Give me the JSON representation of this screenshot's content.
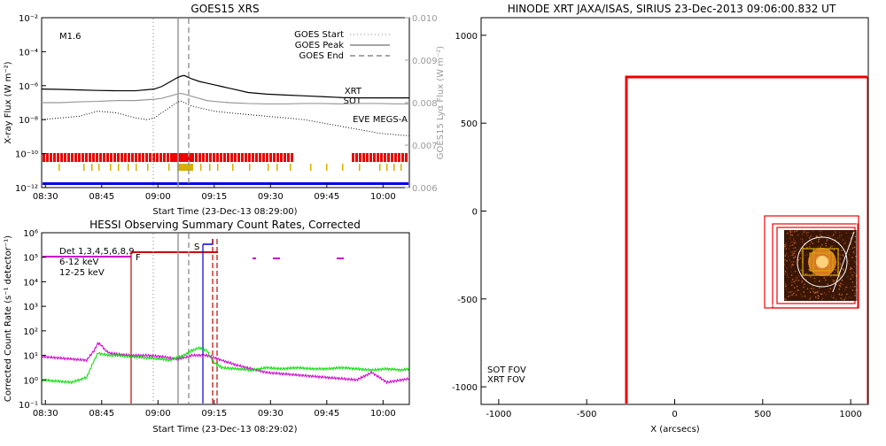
{
  "chart_data": [
    {
      "type": "line",
      "title": "GOES15 XRS",
      "xlabel": "Start Time (23-Dec-13 08:29:00)",
      "ylabel": "X-ray Flux (W m⁻²)",
      "ylabel2": "GOES15 Lyα Flux (W m⁻²)",
      "x_ticks": [
        "08:30",
        "08:45",
        "09:00",
        "09:15",
        "09:30",
        "09:45",
        "10:00"
      ],
      "y_ticks": [
        "10⁻²",
        "10⁻⁴",
        "10⁻⁶",
        "10⁻⁸",
        "10⁻¹⁰",
        "10⁻¹²"
      ],
      "y2_ticks": [
        "0.010",
        "0.009",
        "0.008",
        "0.007",
        "0.006"
      ],
      "flare_class": "M1.6",
      "legend": [
        {
          "label": "GOES Start",
          "style": "dotted"
        },
        {
          "label": "GOES Peak",
          "style": "solid"
        },
        {
          "label": "GOES End",
          "style": "dashed"
        }
      ],
      "instrument_labels": [
        {
          "label": "XRT",
          "color": "#cc0000"
        },
        {
          "label": "SOT",
          "color": "#d4b000"
        },
        {
          "label": "EVE MEGS-A",
          "color": "#0000cc"
        }
      ],
      "markers": {
        "start": "09:00",
        "peak": "09:06",
        "end": "09:09"
      },
      "series": [
        {
          "name": "",
          "color": "#000000",
          "style": "solid",
          "x": [
            0,
            5,
            10,
            15,
            20,
            25,
            30,
            32,
            34,
            36,
            37,
            38,
            39,
            40,
            42,
            44,
            46,
            48,
            50,
            52,
            55,
            60,
            65,
            70,
            75,
            80,
            85,
            90,
            95,
            98
          ],
          "log_y": [
            -6.2,
            -6.22,
            -6.25,
            -6.28,
            -6.3,
            -6.3,
            -6.2,
            -6.05,
            -5.8,
            -5.55,
            -5.45,
            -5.4,
            -5.5,
            -5.6,
            -5.75,
            -5.85,
            -5.95,
            -6.05,
            -6.15,
            -6.25,
            -6.4,
            -6.5,
            -6.55,
            -6.6,
            -6.65,
            -6.7,
            -6.72,
            -6.72,
            -6.72,
            -6.72
          ]
        },
        {
          "name": "",
          "color": "#000000",
          "style": "dotted",
          "x": [
            0,
            5,
            10,
            15,
            20,
            25,
            28,
            30,
            32,
            34,
            36,
            37,
            38,
            40,
            42,
            44,
            46,
            50,
            55,
            60,
            65,
            70,
            75,
            80,
            85,
            90,
            95,
            98
          ],
          "log_y": [
            -8.0,
            -7.9,
            -7.8,
            -7.5,
            -7.6,
            -7.9,
            -8.0,
            -7.9,
            -7.6,
            -7.3,
            -7.0,
            -6.9,
            -7.0,
            -7.2,
            -7.3,
            -7.4,
            -7.5,
            -7.6,
            -7.7,
            -7.8,
            -7.9,
            -8.0,
            -8.2,
            -8.4,
            -8.6,
            -8.8,
            -8.9,
            -8.95
          ]
        },
        {
          "name": "",
          "color": "#999999",
          "style": "solid",
          "x": [
            0,
            5,
            10,
            15,
            20,
            25,
            30,
            32,
            34,
            36,
            37,
            38,
            40,
            42,
            44,
            46,
            50,
            55,
            60,
            65,
            70,
            75,
            80,
            85,
            90,
            95,
            98
          ],
          "y2": [
            0.008,
            0.008,
            0.00802,
            0.00803,
            0.00805,
            0.00805,
            0.00808,
            0.0081,
            0.00815,
            0.0082,
            0.00822,
            0.0082,
            0.00815,
            0.0081,
            0.00805,
            0.00803,
            0.008,
            0.00798,
            0.00797,
            0.00797,
            0.00798,
            0.00798,
            0.00797,
            0.00798,
            0.00798,
            0.00797,
            0.00797
          ]
        }
      ]
    },
    {
      "type": "line",
      "title": "HESSI Observing Summary Count Rates, Corrected",
      "xlabel": "Start Time (23-Dec-13 08:29:02)",
      "ylabel": "Corrected Count Rate (s⁻¹ detector⁻¹)",
      "x_ticks": [
        "08:30",
        "08:45",
        "09:00",
        "09:15",
        "09:30",
        "09:45",
        "10:00"
      ],
      "y_ticks": [
        "10⁶",
        "10⁵",
        "10⁴",
        "10³",
        "10²",
        "10¹",
        "10⁰",
        "10⁻¹"
      ],
      "legend": [
        {
          "label": "Det 1,3,4,5,6,8,9",
          "color": "#000000"
        },
        {
          "label": "6-12 keV",
          "color": "#cc00cc"
        },
        {
          "label": "12-25 keV",
          "color": "#00dd00"
        }
      ],
      "flags": [
        {
          "label": "F",
          "color": "#cc00cc"
        },
        {
          "label": "S",
          "color": "#0000cc"
        }
      ],
      "series": [
        {
          "name": "6-12 keV",
          "color": "#cc00cc",
          "x": [
            0,
            4,
            8,
            12,
            14,
            15,
            16,
            17,
            18,
            20,
            24,
            28,
            32,
            34,
            36,
            38,
            40,
            42,
            44,
            46,
            48,
            52,
            56,
            60,
            64,
            68,
            72,
            76,
            80,
            84,
            88,
            92,
            96,
            98
          ],
          "log_y": [
            0.95,
            0.9,
            0.85,
            0.8,
            1.2,
            1.5,
            1.4,
            1.2,
            1.1,
            1.05,
            1.0,
            1.0,
            0.95,
            0.9,
            0.85,
            0.9,
            1.0,
            1.0,
            1.0,
            0.9,
            0.8,
            0.6,
            0.45,
            0.3,
            0.25,
            0.2,
            0.15,
            0.1,
            0.05,
            0.0,
            0.3,
            -0.1,
            0.0,
            0.05
          ]
        },
        {
          "name": "12-25 keV",
          "color": "#00dd00",
          "x": [
            0,
            4,
            8,
            12,
            14,
            15,
            16,
            18,
            20,
            24,
            28,
            32,
            34,
            36,
            38,
            40,
            42,
            44,
            46,
            48,
            52,
            56,
            60,
            64,
            68,
            72,
            76,
            80,
            84,
            88,
            92,
            96,
            98
          ],
          "log_y": [
            0.0,
            -0.05,
            -0.1,
            0.1,
            0.8,
            1.1,
            1.05,
            1.0,
            1.0,
            0.95,
            0.9,
            0.85,
            0.8,
            0.9,
            1.0,
            1.2,
            1.3,
            1.2,
            0.7,
            0.5,
            0.45,
            0.4,
            0.5,
            0.45,
            0.5,
            0.45,
            0.45,
            0.5,
            0.45,
            0.4,
            0.45,
            0.4,
            0.45
          ]
        }
      ]
    },
    {
      "type": "scatter",
      "title": "HINODE XRT JAXA/ISAS, SIRIUS 23-Dec-2013 09:06:00.832 UT",
      "xlabel": "X (arcsecs)",
      "ylabel": "",
      "x_ticks": [
        -1000,
        -500,
        0,
        500,
        1000
      ],
      "y_ticks": [
        1000,
        500,
        0,
        -500,
        -1000
      ],
      "xlim": [
        -1100,
        1100
      ],
      "ylim": [
        -1100,
        1100
      ],
      "fov_labels": [
        {
          "label": "SOT FOV",
          "color": "#d4b000"
        },
        {
          "label": "XRT FOV",
          "color": "#cc0000"
        }
      ]
    }
  ]
}
